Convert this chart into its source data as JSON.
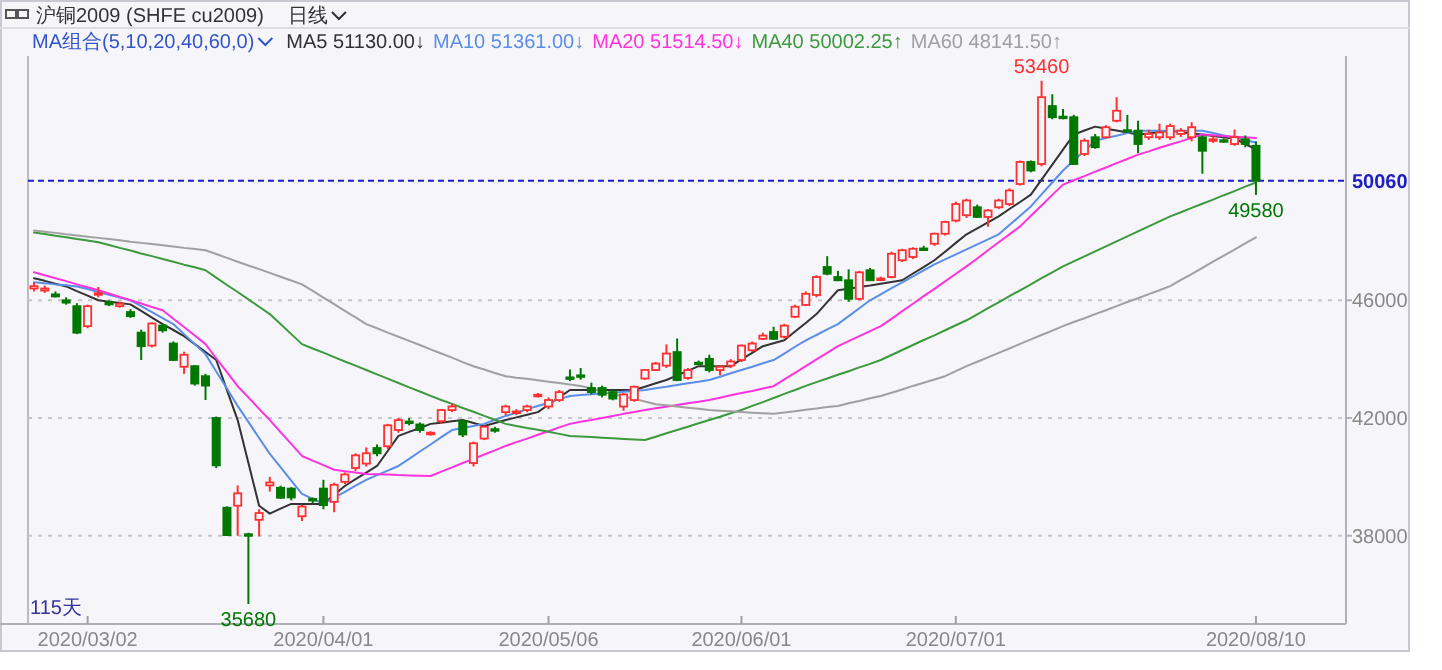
{
  "chart_data": {
    "type": "candlestick",
    "title": "沪铜2009 (SHFE cu2009)",
    "subtitle": "日线",
    "categories": [
      null,
      null,
      null,
      null,
      null,
      "2020/03/02",
      null,
      null,
      null,
      null,
      null,
      null,
      null,
      null,
      null,
      null,
      null,
      null,
      null,
      null,
      null,
      null,
      null,
      null,
      null,
      null,
      null,
      "2020/04/01",
      null,
      null,
      null,
      null,
      null,
      null,
      null,
      null,
      null,
      null,
      null,
      null,
      null,
      null,
      null,
      null,
      null,
      null,
      null,
      null,
      "2020/05/06",
      null,
      null,
      null,
      null,
      null,
      null,
      null,
      null,
      null,
      null,
      null,
      null,
      null,
      null,
      null,
      null,
      null,
      "2020/06/01",
      null,
      null,
      null,
      null,
      null,
      null,
      null,
      null,
      null,
      null,
      null,
      null,
      null,
      null,
      null,
      null,
      null,
      null,
      null,
      "2020/07/01",
      null,
      null,
      null,
      null,
      null,
      null,
      null,
      null,
      null,
      null,
      null,
      null,
      null,
      null,
      null,
      null,
      null,
      null,
      null,
      null,
      null,
      null,
      null,
      null,
      null,
      null,
      null,
      "2020/08/10"
    ],
    "ohlc": [
      [
        46400,
        46600,
        46300,
        46480
      ],
      [
        46330,
        46500,
        46250,
        46400
      ],
      [
        46200,
        46300,
        46100,
        46130
      ],
      [
        46000,
        46100,
        45850,
        45920
      ],
      [
        45800,
        45900,
        44850,
        44900
      ],
      [
        45120,
        45850,
        45050,
        45800
      ],
      [
        46200,
        46450,
        46100,
        46240
      ],
      [
        45930,
        46000,
        45800,
        45860
      ],
      [
        45800,
        45950,
        45750,
        45880
      ],
      [
        45600,
        45700,
        45400,
        45460
      ],
      [
        44900,
        45000,
        43970,
        44440
      ],
      [
        44460,
        45250,
        44400,
        45210
      ],
      [
        45140,
        45200,
        44900,
        44980
      ],
      [
        44530,
        44600,
        43950,
        43970
      ],
      [
        43740,
        44250,
        43500,
        44150
      ],
      [
        43760,
        43800,
        43100,
        43170
      ],
      [
        43420,
        43500,
        42610,
        43100
      ],
      [
        42000,
        42050,
        40300,
        40390
      ],
      [
        38950,
        39000,
        38000,
        38020
      ],
      [
        39020,
        39710,
        38000,
        39440
      ],
      [
        38050,
        38100,
        35680,
        38000
      ],
      [
        38540,
        38900,
        37980,
        38770
      ],
      [
        39710,
        40000,
        39500,
        39810
      ],
      [
        39630,
        39700,
        39250,
        39290
      ],
      [
        39600,
        39650,
        39200,
        39300
      ],
      [
        38660,
        39050,
        38500,
        38990
      ],
      [
        39250,
        39300,
        39100,
        39200
      ],
      [
        39600,
        39900,
        38900,
        39040
      ],
      [
        39150,
        39800,
        38800,
        39730
      ],
      [
        39830,
        40150,
        39750,
        40080
      ],
      [
        40300,
        40800,
        40200,
        40730
      ],
      [
        40450,
        41000,
        40350,
        40800
      ],
      [
        40980,
        41100,
        40700,
        40800
      ],
      [
        41040,
        41800,
        40950,
        41750
      ],
      [
        41590,
        42000,
        41500,
        41930
      ],
      [
        41880,
        42000,
        41750,
        41850
      ],
      [
        41780,
        41850,
        41500,
        41590
      ],
      [
        41460,
        41550,
        41400,
        41500
      ],
      [
        41890,
        42300,
        41800,
        42270
      ],
      [
        42270,
        42500,
        42200,
        42390
      ],
      [
        41890,
        41950,
        41350,
        41440
      ],
      [
        40470,
        41200,
        40350,
        41140
      ],
      [
        41300,
        41750,
        41250,
        41700
      ],
      [
        41620,
        41700,
        41500,
        41590
      ],
      [
        42200,
        42450,
        42100,
        42390
      ],
      [
        42180,
        42300,
        42100,
        42220
      ],
      [
        42270,
        42450,
        42200,
        42390
      ],
      [
        42750,
        42850,
        42700,
        42790
      ],
      [
        42390,
        42700,
        42300,
        42610
      ],
      [
        42610,
        42950,
        42550,
        42880
      ],
      [
        43380,
        43650,
        43250,
        43340
      ],
      [
        43450,
        43700,
        43300,
        43400
      ],
      [
        43020,
        43200,
        42800,
        42880
      ],
      [
        43020,
        43100,
        42700,
        42790
      ],
      [
        42880,
        42950,
        42600,
        42660
      ],
      [
        42390,
        42850,
        42250,
        42800
      ],
      [
        42610,
        43100,
        42550,
        43060
      ],
      [
        43340,
        43650,
        43300,
        43630
      ],
      [
        43630,
        43900,
        43600,
        43850
      ],
      [
        43780,
        44500,
        43700,
        44190
      ],
      [
        44240,
        44700,
        43250,
        43290
      ],
      [
        43360,
        43700,
        43300,
        43630
      ],
      [
        43880,
        43950,
        43800,
        43850
      ],
      [
        44010,
        44150,
        43550,
        43630
      ],
      [
        43630,
        43800,
        43450,
        43740
      ],
      [
        43780,
        44000,
        43700,
        43920
      ],
      [
        43970,
        44500,
        43900,
        44460
      ],
      [
        44300,
        44600,
        44250,
        44530
      ],
      [
        44690,
        44900,
        44650,
        44800
      ],
      [
        44920,
        45100,
        44650,
        44690
      ],
      [
        44760,
        45200,
        44700,
        45140
      ],
      [
        45440,
        45850,
        45400,
        45780
      ],
      [
        45840,
        46300,
        45800,
        46220
      ],
      [
        46180,
        46850,
        46100,
        46790
      ],
      [
        47130,
        47500,
        46850,
        46900
      ],
      [
        46790,
        47000,
        46650,
        46680
      ],
      [
        46680,
        47050,
        45950,
        46050
      ],
      [
        46050,
        47000,
        46000,
        46950
      ],
      [
        47020,
        47100,
        46650,
        46680
      ],
      [
        46700,
        46800,
        46650,
        46740
      ],
      [
        46790,
        47650,
        46750,
        47580
      ],
      [
        47360,
        47750,
        47300,
        47700
      ],
      [
        47470,
        47800,
        47400,
        47750
      ],
      [
        47760,
        47850,
        47700,
        47720
      ],
      [
        47920,
        48300,
        47850,
        48260
      ],
      [
        48260,
        48700,
        48200,
        48660
      ],
      [
        48710,
        49350,
        48650,
        49270
      ],
      [
        48890,
        49450,
        48800,
        49390
      ],
      [
        49160,
        49250,
        48800,
        48830
      ],
      [
        48830,
        49100,
        48500,
        49050
      ],
      [
        49160,
        49450,
        49100,
        49390
      ],
      [
        49270,
        49800,
        49200,
        49730
      ],
      [
        49950,
        50750,
        49900,
        50700
      ],
      [
        50700,
        50750,
        50350,
        50410
      ],
      [
        50630,
        53460,
        50550,
        52900
      ],
      [
        52600,
        53000,
        52150,
        52220
      ],
      [
        52240,
        52500,
        52150,
        52220
      ],
      [
        52220,
        52300,
        50600,
        50630
      ],
      [
        50970,
        51500,
        50900,
        51420
      ],
      [
        51540,
        51650,
        51150,
        51200
      ],
      [
        51540,
        51950,
        51500,
        51880
      ],
      [
        52100,
        52900,
        52050,
        52440
      ],
      [
        51780,
        52300,
        51700,
        51760
      ],
      [
        51760,
        52100,
        51000,
        51310
      ],
      [
        51540,
        51800,
        51450,
        51650
      ],
      [
        51540,
        52000,
        51450,
        51700
      ],
      [
        51540,
        52000,
        51450,
        51920
      ],
      [
        51650,
        51850,
        51550,
        51760
      ],
      [
        51540,
        52050,
        51400,
        51880
      ],
      [
        51540,
        51600,
        50300,
        51080
      ],
      [
        51450,
        51600,
        51350,
        51470
      ],
      [
        51440,
        51500,
        51350,
        51420
      ],
      [
        51310,
        51800,
        51250,
        51540
      ],
      [
        51470,
        51600,
        51200,
        51310
      ],
      [
        51250,
        51400,
        49580,
        50060
      ]
    ],
    "series": [
      {
        "name": "MA5 51130.00↓",
        "type": "line",
        "color": "#333333",
        "values": [
          46750,
          46660,
          46560,
          46470,
          46310,
          46160,
          46000,
          45950,
          45910,
          45860,
          45640,
          45410,
          45190,
          44990,
          44780,
          44510,
          44240,
          43970,
          42950,
          41930,
          40480,
          39020,
          38750,
          38920,
          39080,
          39080,
          39080,
          39080,
          39390,
          39690,
          39920,
          40140,
          40370,
          40880,
          41390,
          41530,
          41660,
          41800,
          41840,
          41890,
          41930,
          41830,
          41730,
          41830,
          41930,
          42020,
          42110,
          42200,
          42450,
          42700,
          42950,
          42950,
          42950,
          42950,
          42950,
          42950,
          42950,
          43060,
          43180,
          43290,
          43450,
          43600,
          43760,
          43760,
          43760,
          43760,
          43990,
          44210,
          44440,
          44540,
          44640,
          44940,
          45230,
          45530,
          45940,
          46340,
          46390,
          46450,
          46500,
          46560,
          46620,
          46680,
          46910,
          47130,
          47360,
          47650,
          47950,
          48240,
          48440,
          48650,
          48850,
          49100,
          49340,
          49590,
          50100,
          50610,
          51120,
          51630,
          51770,
          51900,
          51830,
          51770,
          51700,
          51630,
          51670,
          51720,
          51760,
          51720,
          51670,
          51630,
          51580,
          51540,
          51490,
          51310,
          51130
        ]
      },
      {
        "name": "MA10 51361.00↓",
        "type": "line",
        "color": "#5b8ee6",
        "values": [
          46610,
          46580,
          46540,
          46510,
          46470,
          46380,
          46280,
          46190,
          46090,
          46000,
          45800,
          45600,
          45390,
          45190,
          44850,
          44510,
          44170,
          43580,
          43000,
          42410,
          41870,
          41320,
          40780,
          40330,
          39870,
          39420,
          39250,
          39080,
          39290,
          39490,
          39700,
          39900,
          40060,
          40210,
          40370,
          40610,
          40860,
          41100,
          41350,
          41590,
          41660,
          41730,
          41800,
          41940,
          42070,
          42180,
          42300,
          42410,
          42520,
          42640,
          42750,
          42780,
          42810,
          42840,
          42860,
          42890,
          42920,
          42950,
          43010,
          43060,
          43120,
          43180,
          43230,
          43290,
          43400,
          43520,
          43630,
          43740,
          43860,
          43970,
          44190,
          44420,
          44640,
          44820,
          45010,
          45190,
          45460,
          45730,
          46000,
          46200,
          46410,
          46610,
          46810,
          47020,
          47220,
          47390,
          47560,
          47730,
          47900,
          48070,
          48240,
          48560,
          48870,
          49190,
          49600,
          50000,
          50410,
          50750,
          51080,
          51420,
          51510,
          51590,
          51680,
          51760,
          51760,
          51760,
          51760,
          51760,
          51760,
          51760,
          51680,
          51600,
          51520,
          51440,
          51360
        ]
      },
      {
        "name": "MA20 51514.50↓",
        "type": "line",
        "color": "#ff33dd",
        "values": [
          46950,
          46850,
          46750,
          46650,
          46540,
          46440,
          46340,
          46230,
          46110,
          46000,
          45890,
          45770,
          45660,
          45370,
          45090,
          44800,
          44510,
          44030,
          43560,
          43080,
          42700,
          42310,
          41930,
          41520,
          41120,
          40710,
          40550,
          40400,
          40240,
          40190,
          40150,
          40100,
          40090,
          40080,
          40060,
          40050,
          40040,
          40030,
          40180,
          40320,
          40470,
          40610,
          40760,
          40900,
          41050,
          41180,
          41300,
          41430,
          41550,
          41680,
          41800,
          41870,
          41930,
          42000,
          42070,
          42140,
          42200,
          42270,
          42330,
          42380,
          42440,
          42500,
          42550,
          42610,
          42690,
          42770,
          42850,
          42920,
          43000,
          43080,
          43310,
          43530,
          43760,
          43990,
          44210,
          44440,
          44610,
          44780,
          44950,
          45120,
          45370,
          45630,
          45880,
          46140,
          46390,
          46640,
          46900,
          47150,
          47420,
          47700,
          47970,
          48240,
          48510,
          48870,
          49220,
          49580,
          49930,
          50080,
          50220,
          50370,
          50510,
          50660,
          50800,
          50950,
          51060,
          51180,
          51290,
          51400,
          51520,
          51630,
          51610,
          51580,
          51560,
          51540,
          51510
        ]
      },
      {
        "name": "MA40 50002.25↑",
        "type": "line",
        "color": "#3c9a3c",
        "values": [
          48300,
          48250,
          48190,
          48140,
          48080,
          48030,
          47970,
          47880,
          47780,
          47690,
          47590,
          47500,
          47400,
          47310,
          47210,
          47120,
          47020,
          46770,
          46520,
          46280,
          46030,
          45780,
          45530,
          45190,
          44850,
          44510,
          44360,
          44220,
          44070,
          43920,
          43780,
          43630,
          43480,
          43340,
          43190,
          43040,
          42900,
          42750,
          42610,
          42480,
          42340,
          42210,
          42070,
          41940,
          41800,
          41730,
          41660,
          41600,
          41530,
          41460,
          41390,
          41370,
          41350,
          41330,
          41310,
          41290,
          41270,
          41250,
          41360,
          41480,
          41590,
          41700,
          41820,
          41930,
          42040,
          42160,
          42270,
          42410,
          42540,
          42680,
          42820,
          42950,
          43090,
          43220,
          43340,
          43470,
          43590,
          43720,
          43840,
          43970,
          44140,
          44310,
          44480,
          44650,
          44810,
          44980,
          45150,
          45320,
          45520,
          45730,
          45930,
          46140,
          46340,
          46540,
          46750,
          46950,
          47150,
          47320,
          47490,
          47660,
          47830,
          48000,
          48170,
          48340,
          48510,
          48680,
          48850,
          48990,
          49140,
          49280,
          49420,
          49570,
          49710,
          49860,
          50000
        ]
      },
      {
        "name": "MA60 48141.50↑",
        "type": "line",
        "color": "#a0a0a0",
        "values": [
          48370,
          48330,
          48290,
          48240,
          48200,
          48160,
          48120,
          48080,
          48040,
          47990,
          47950,
          47910,
          47870,
          47830,
          47780,
          47740,
          47700,
          47570,
          47440,
          47310,
          47180,
          47060,
          46930,
          46800,
          46670,
          46540,
          46320,
          46090,
          45870,
          45640,
          45420,
          45190,
          45050,
          44900,
          44760,
          44620,
          44480,
          44330,
          44190,
          44050,
          43900,
          43760,
          43650,
          43530,
          43420,
          43370,
          43330,
          43280,
          43230,
          43190,
          43140,
          43090,
          43000,
          42910,
          42820,
          42730,
          42650,
          42560,
          42470,
          42430,
          42390,
          42350,
          42310,
          42270,
          42250,
          42230,
          42200,
          42180,
          42160,
          42140,
          42190,
          42230,
          42280,
          42320,
          42370,
          42410,
          42500,
          42580,
          42670,
          42750,
          42860,
          42970,
          43090,
          43200,
          43310,
          43420,
          43590,
          43760,
          43910,
          44060,
          44210,
          44360,
          44520,
          44670,
          44820,
          44970,
          45120,
          45260,
          45390,
          45530,
          45660,
          45800,
          45940,
          46070,
          46210,
          46340,
          46480,
          46690,
          46890,
          47100,
          47310,
          47520,
          47720,
          47930,
          48140
        ]
      }
    ],
    "ylim": [
      35000,
      54300
    ],
    "yticks": [
      38000,
      42000,
      46000
    ],
    "grid": "y",
    "legend": "top",
    "ref_lines": [
      {
        "axis": "y",
        "value": 50060,
        "label": "50060",
        "color": "#2020c0",
        "line_style": "dashed"
      }
    ],
    "annotations": [
      "MA组合(5,10,20,40,60,0)",
      {
        "text": "53460",
        "y": 53460
      },
      {
        "text": "35680",
        "y": 35680
      },
      {
        "text": "49580",
        "y": 49580
      },
      "115天"
    ]
  }
}
